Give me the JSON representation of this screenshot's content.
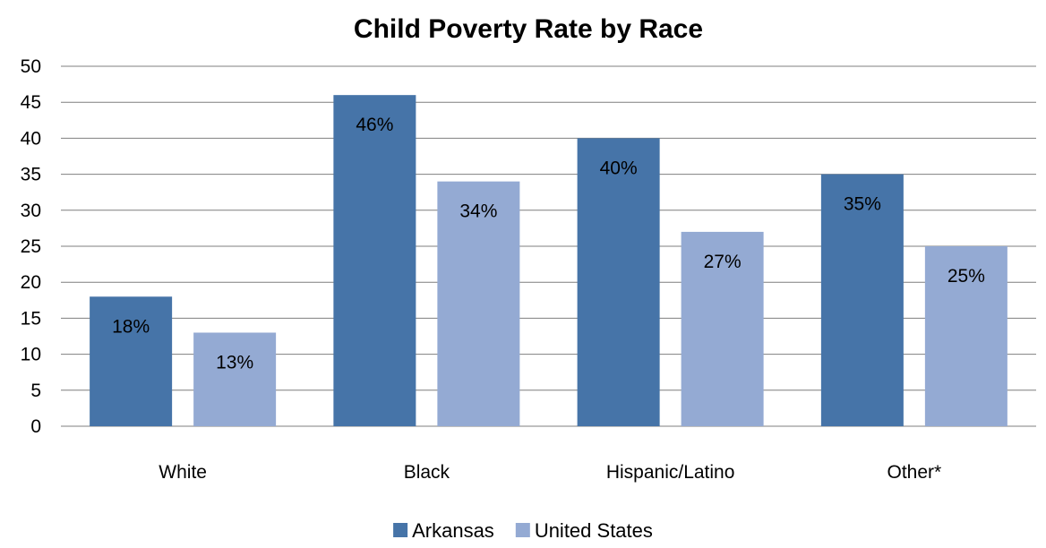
{
  "chart_data": {
    "type": "bar",
    "title": "Child Poverty Rate by Race",
    "xlabel": "",
    "ylabel": "",
    "categories": [
      "White",
      "Black",
      "Hispanic/Latino",
      "Other*"
    ],
    "series": [
      {
        "name": "Arkansas",
        "values": [
          18,
          46,
          40,
          35
        ],
        "labels": [
          "18%",
          "46%",
          "40%",
          "35%"
        ],
        "color": "#4674A8"
      },
      {
        "name": "United States",
        "values": [
          13,
          34,
          27,
          25
        ],
        "labels": [
          "13%",
          "34%",
          "27%",
          "25%"
        ],
        "color": "#94AAD3"
      }
    ],
    "ylim": [
      0,
      50
    ],
    "yticks": [
      0,
      5,
      10,
      15,
      20,
      25,
      30,
      35,
      40,
      45,
      50
    ],
    "grid": true,
    "legend_position": "bottom"
  }
}
